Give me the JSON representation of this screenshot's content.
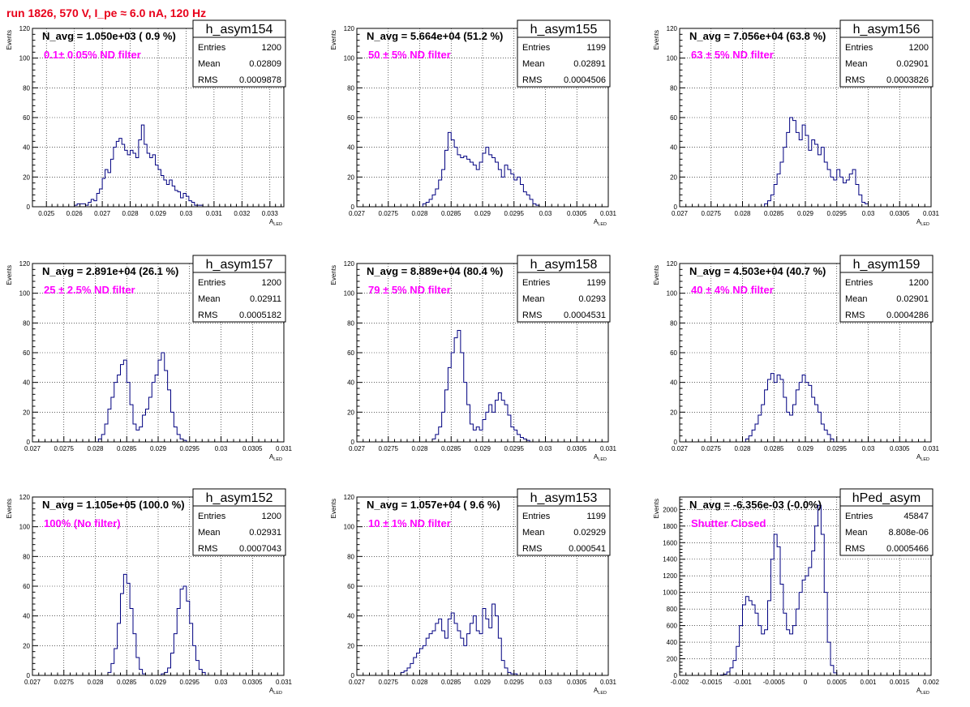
{
  "page": {
    "title": "run 1826,   570 V, I_pe ≈ 6.0 nA, 120 Hz",
    "colors": {
      "title": "#e8001a",
      "annotation": "#ff00ff",
      "hist": "#000080",
      "frame": "#000000",
      "grid": "#000000"
    }
  },
  "chart_data": [
    {
      "type": "histogram",
      "id": "h_asym154",
      "stats_title": "h_asym154",
      "stats": {
        "Entries": "1200",
        "Mean": "0.02809",
        "RMS": "0.0009878"
      },
      "navg_text": "N_avg = 1.050e+03 ( 0.9 %)",
      "filter_label": "0.1± 0.05% ND filter",
      "xlim": [
        0.0245,
        0.0335
      ],
      "ylim": [
        0,
        120
      ],
      "xticks": [
        0.025,
        0.026,
        0.027,
        0.028,
        0.029,
        0.03,
        0.031,
        0.032,
        0.033
      ],
      "xticklabels": [
        "0.025",
        "0.026",
        "0.027",
        "0.028",
        "0.029",
        "0.03",
        "0.031",
        "0.032",
        "0.033"
      ],
      "yticks": [
        0,
        20,
        40,
        60,
        80,
        100,
        120
      ],
      "yticklabels": [
        "0",
        "20",
        "40",
        "60",
        "80",
        "100",
        "120"
      ],
      "xlabel": "A_LED",
      "ylabel": "Events",
      "bin_start": 0.026,
      "bin_width": 0.0001,
      "counts": [
        1,
        2,
        2,
        2,
        1,
        3,
        5,
        4,
        9,
        12,
        19,
        25,
        23,
        32,
        40,
        44,
        46,
        42,
        38,
        35,
        38,
        36,
        33,
        45,
        55,
        42,
        36,
        33,
        35,
        28,
        25,
        21,
        18,
        15,
        18,
        14,
        11,
        10,
        6,
        9,
        7,
        4,
        3,
        1,
        1,
        1
      ]
    },
    {
      "type": "histogram",
      "id": "h_asym155",
      "stats_title": "h_asym155",
      "stats": {
        "Entries": "1199",
        "Mean": "0.02891",
        "RMS": "0.0004506"
      },
      "navg_text": "N_avg = 5.664e+04 (51.2 %)",
      "filter_label": "50 ± 5% ND filter",
      "xlim": [
        0.027,
        0.031
      ],
      "ylim": [
        0,
        120
      ],
      "xticks": [
        0.027,
        0.0275,
        0.028,
        0.0285,
        0.029,
        0.0295,
        0.03,
        0.0305,
        0.031
      ],
      "xticklabels": [
        "0.027",
        "0.0275",
        "0.028",
        "0.0285",
        "0.029",
        "0.0295",
        "0.03",
        "0.0305",
        "0.031"
      ],
      "yticks": [
        0,
        20,
        40,
        60,
        80,
        100,
        120
      ],
      "yticklabels": [
        "0",
        "20",
        "40",
        "60",
        "80",
        "100",
        "120"
      ],
      "xlabel": "A_LED",
      "ylabel": "Events",
      "bin_start": 0.02805,
      "bin_width": 5e-05,
      "counts": [
        2,
        3,
        5,
        8,
        12,
        18,
        25,
        38,
        50,
        45,
        40,
        35,
        33,
        34,
        32,
        30,
        28,
        25,
        30,
        36,
        40,
        35,
        33,
        30,
        25,
        20,
        28,
        25,
        22,
        18,
        20,
        15,
        10,
        8,
        5,
        2,
        1
      ]
    },
    {
      "type": "histogram",
      "id": "h_asym156",
      "stats_title": "h_asym156",
      "stats": {
        "Entries": "1200",
        "Mean": "0.02901",
        "RMS": "0.0003826"
      },
      "navg_text": "N_avg = 7.056e+04 (63.8 %)",
      "filter_label": "63 ± 5% ND filter",
      "xlim": [
        0.027,
        0.031
      ],
      "ylim": [
        0,
        120
      ],
      "xticks": [
        0.027,
        0.0275,
        0.028,
        0.0285,
        0.029,
        0.0295,
        0.03,
        0.0305,
        0.031
      ],
      "xticklabels": [
        "0.027",
        "0.0275",
        "0.028",
        "0.0285",
        "0.029",
        "0.0295",
        "0.03",
        "0.0305",
        "0.031"
      ],
      "yticks": [
        0,
        20,
        40,
        60,
        80,
        100,
        120
      ],
      "yticklabels": [
        "0",
        "20",
        "40",
        "60",
        "80",
        "100",
        "120"
      ],
      "xlabel": "A_LED",
      "ylabel": "Events",
      "bin_start": 0.02835,
      "bin_width": 5e-05,
      "counts": [
        2,
        4,
        8,
        15,
        22,
        30,
        40,
        50,
        60,
        58,
        50,
        45,
        55,
        48,
        38,
        45,
        42,
        35,
        40,
        30,
        25,
        20,
        18,
        25,
        20,
        16,
        18,
        22,
        25,
        15,
        8,
        3,
        2
      ]
    },
    {
      "type": "histogram",
      "id": "h_asym157",
      "stats_title": "h_asym157",
      "stats": {
        "Entries": "1200",
        "Mean": "0.02911",
        "RMS": "0.0005182"
      },
      "navg_text": "N_avg = 2.891e+04 (26.1 %)",
      "filter_label": "25 ± 2.5% ND filter",
      "xlim": [
        0.027,
        0.031
      ],
      "ylim": [
        0,
        120
      ],
      "xticks": [
        0.027,
        0.0275,
        0.028,
        0.0285,
        0.029,
        0.0295,
        0.03,
        0.0305,
        0.031
      ],
      "xticklabels": [
        "0.027",
        "0.0275",
        "0.028",
        "0.0285",
        "0.029",
        "0.0295",
        "0.03",
        "0.0305",
        "0.031"
      ],
      "yticks": [
        0,
        20,
        40,
        60,
        80,
        100,
        120
      ],
      "yticklabels": [
        "0",
        "20",
        "40",
        "60",
        "80",
        "100",
        "120"
      ],
      "xlabel": "A_LED",
      "ylabel": "Events",
      "bin_start": 0.02805,
      "bin_width": 5e-05,
      "counts": [
        2,
        5,
        12,
        22,
        30,
        40,
        45,
        52,
        55,
        40,
        25,
        12,
        8,
        10,
        18,
        22,
        30,
        40,
        45,
        55,
        60,
        48,
        35,
        20,
        10,
        5,
        2,
        1
      ]
    },
    {
      "type": "histogram",
      "id": "h_asym158",
      "stats_title": "h_asym158",
      "stats": {
        "Entries": "1199",
        "Mean": "0.0293",
        "RMS": "0.0004531"
      },
      "navg_text": "N_avg = 8.889e+04 (80.4 %)",
      "filter_label": "79 ± 5% ND filter",
      "xlim": [
        0.027,
        0.031
      ],
      "ylim": [
        0,
        120
      ],
      "xticks": [
        0.027,
        0.0275,
        0.028,
        0.0285,
        0.029,
        0.0295,
        0.03,
        0.0305,
        0.031
      ],
      "xticklabels": [
        "0.027",
        "0.0275",
        "0.028",
        "0.0285",
        "0.029",
        "0.0295",
        "0.03",
        "0.0305",
        "0.031"
      ],
      "yticks": [
        0,
        20,
        40,
        60,
        80,
        100,
        120
      ],
      "yticklabels": [
        "0",
        "20",
        "40",
        "60",
        "80",
        "100",
        "120"
      ],
      "xlabel": "A_LED",
      "ylabel": "Events",
      "bin_start": 0.0282,
      "bin_width": 5e-05,
      "counts": [
        2,
        5,
        10,
        20,
        35,
        50,
        60,
        70,
        75,
        60,
        40,
        25,
        12,
        8,
        10,
        8,
        15,
        20,
        25,
        20,
        28,
        33,
        28,
        25,
        18,
        10,
        8,
        5,
        3,
        2,
        1
      ]
    },
    {
      "type": "histogram",
      "id": "h_asym159",
      "stats_title": "h_asym159",
      "stats": {
        "Entries": "1200",
        "Mean": "0.02901",
        "RMS": "0.0004286"
      },
      "navg_text": "N_avg = 4.503e+04 (40.7 %)",
      "filter_label": "40 ± 4% ND filter",
      "xlim": [
        0.027,
        0.031
      ],
      "ylim": [
        0,
        120
      ],
      "xticks": [
        0.027,
        0.0275,
        0.028,
        0.0285,
        0.029,
        0.0295,
        0.03,
        0.0305,
        0.031
      ],
      "xticklabels": [
        "0.027",
        "0.0275",
        "0.028",
        "0.0285",
        "0.029",
        "0.0295",
        "0.03",
        "0.0305",
        "0.031"
      ],
      "yticks": [
        0,
        20,
        40,
        60,
        80,
        100,
        120
      ],
      "yticklabels": [
        "0",
        "20",
        "40",
        "60",
        "80",
        "100",
        "120"
      ],
      "xlabel": "A_LED",
      "ylabel": "Events",
      "bin_start": 0.02805,
      "bin_width": 5e-05,
      "counts": [
        2,
        4,
        8,
        12,
        18,
        25,
        35,
        42,
        46,
        40,
        45,
        42,
        30,
        20,
        18,
        25,
        35,
        40,
        45,
        40,
        38,
        30,
        25,
        20,
        12,
        8,
        5,
        2
      ]
    },
    {
      "type": "histogram",
      "id": "h_asym152",
      "stats_title": "h_asym152",
      "stats": {
        "Entries": "1200",
        "Mean": "0.02931",
        "RMS": "0.0007043"
      },
      "navg_text": "N_avg = 1.105e+05 (100.0 %)",
      "filter_label": "100% (No filter)",
      "xlim": [
        0.027,
        0.031
      ],
      "ylim": [
        0,
        120
      ],
      "xticks": [
        0.027,
        0.0275,
        0.028,
        0.0285,
        0.029,
        0.0295,
        0.03,
        0.0305,
        0.031
      ],
      "xticklabels": [
        "0.027",
        "0.0275",
        "0.028",
        "0.0285",
        "0.029",
        "0.0295",
        "0.03",
        "0.0305",
        "0.031"
      ],
      "yticks": [
        0,
        20,
        40,
        60,
        80,
        100,
        120
      ],
      "yticklabels": [
        "0",
        "20",
        "40",
        "60",
        "80",
        "100",
        "120"
      ],
      "xlabel": "A_LED",
      "ylabel": "Events",
      "bin_start": 0.0282,
      "bin_width": 5e-05,
      "counts": [
        2,
        8,
        18,
        35,
        55,
        68,
        62,
        45,
        28,
        12,
        4,
        1,
        0,
        0,
        0,
        0,
        0,
        1,
        2,
        5,
        15,
        28,
        45,
        58,
        60,
        50,
        35,
        20,
        10,
        4,
        2
      ]
    },
    {
      "type": "histogram",
      "id": "h_asym153",
      "stats_title": "h_asym153",
      "stats": {
        "Entries": "1199",
        "Mean": "0.02929",
        "RMS": "0.000541"
      },
      "navg_text": "N_avg = 1.057e+04 ( 9.6 %)",
      "filter_label": "10 ± 1% ND filter",
      "xlim": [
        0.027,
        0.031
      ],
      "ylim": [
        0,
        120
      ],
      "xticks": [
        0.027,
        0.0275,
        0.028,
        0.0285,
        0.029,
        0.0295,
        0.03,
        0.0305,
        0.031
      ],
      "xticklabels": [
        "0.027",
        "0.0275",
        "0.028",
        "0.0285",
        "0.029",
        "0.0295",
        "0.03",
        "0.0305",
        "0.031"
      ],
      "yticks": [
        0,
        20,
        40,
        60,
        80,
        100,
        120
      ],
      "yticklabels": [
        "0",
        "20",
        "40",
        "60",
        "80",
        "100",
        "120"
      ],
      "xlabel": "A_LED",
      "ylabel": "Events",
      "bin_start": 0.0277,
      "bin_width": 5e-05,
      "counts": [
        2,
        3,
        5,
        8,
        12,
        15,
        18,
        20,
        25,
        28,
        30,
        35,
        38,
        30,
        25,
        38,
        42,
        35,
        30,
        25,
        20,
        28,
        35,
        40,
        30,
        28,
        45,
        38,
        32,
        48,
        40,
        25,
        10,
        5,
        2,
        1,
        1
      ]
    },
    {
      "type": "histogram",
      "id": "hPed_asym",
      "stats_title": "hPed_asym",
      "stats": {
        "Entries": "45847",
        "Mean": "8.808e-06",
        "RMS": "0.0005466"
      },
      "navg_text": "N_avg = -6.356e-03 (-0.0%)",
      "filter_label": "Shutter Closed",
      "xlim": [
        -0.002,
        0.002
      ],
      "ylim": [
        0,
        2150
      ],
      "xticks": [
        -0.002,
        -0.0015,
        -0.001,
        -0.0005,
        0,
        0.0005,
        0.001,
        0.0015,
        0.002
      ],
      "xticklabels": [
        "-0.002",
        "-0.0015",
        "-0.001",
        "-0.0005",
        "0",
        "0.0005",
        "0.001",
        "0.0015",
        "0.002"
      ],
      "yticks": [
        0,
        200,
        400,
        600,
        800,
        1000,
        1200,
        1400,
        1600,
        1800,
        2000
      ],
      "yticklabels": [
        "0",
        "200",
        "400",
        "600",
        "800",
        "1000",
        "1200",
        "1400",
        "1600",
        "1800",
        "2000"
      ],
      "xlabel": "A_LED",
      "ylabel": "Events",
      "bin_start": -0.00135,
      "bin_width": 5e-05,
      "counts": [
        5,
        15,
        40,
        90,
        180,
        350,
        600,
        850,
        950,
        900,
        850,
        750,
        600,
        500,
        550,
        900,
        1400,
        1700,
        1550,
        1100,
        750,
        550,
        500,
        600,
        800,
        1000,
        1150,
        1200,
        1300,
        1500,
        1800,
        2050,
        1700,
        1000,
        400,
        120,
        30
      ]
    }
  ]
}
